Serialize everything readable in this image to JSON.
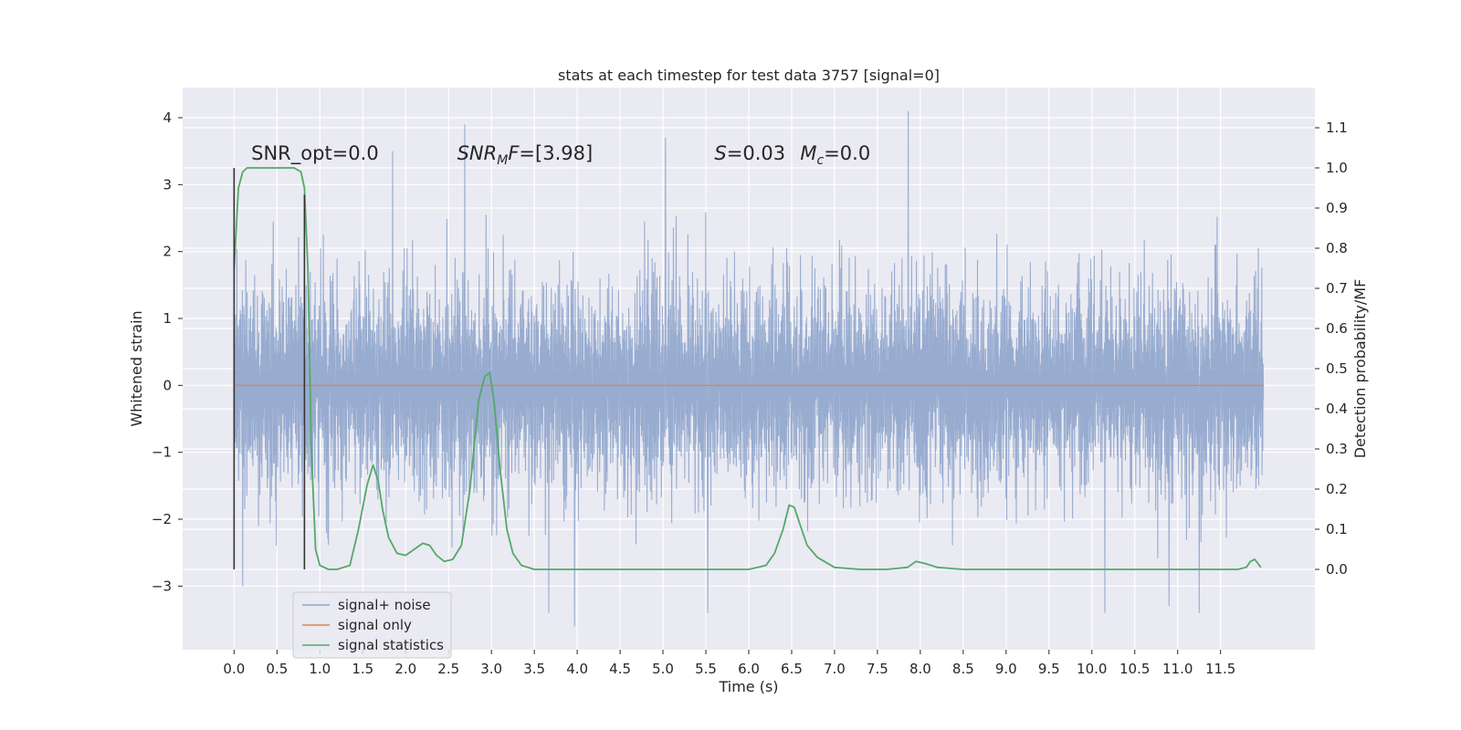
{
  "chart_data": {
    "type": "line",
    "title": "stats at each timestep for test data 3757 [signal=0]",
    "xlabel": "Time (s)",
    "ylabel": "Whitened strain",
    "y2label": "Detection probability/MF",
    "xlim": [
      -0.6,
      12.6
    ],
    "ylim": [
      -3.95,
      4.45
    ],
    "y2lim": [
      -0.2,
      1.2
    ],
    "x_ticks": [
      0.0,
      0.5,
      1.0,
      1.5,
      2.0,
      2.5,
      3.0,
      3.5,
      4.0,
      4.5,
      5.0,
      5.5,
      6.0,
      6.5,
      7.0,
      7.5,
      8.0,
      8.5,
      9.0,
      9.5,
      10.0,
      10.5,
      11.0,
      11.5
    ],
    "x_tick_labels": [
      "0.0",
      "0.5",
      "1.0",
      "1.5",
      "2.0",
      "2.5",
      "3.0",
      "3.5",
      "4.0",
      "4.5",
      "5.0",
      "5.5",
      "6.0",
      "6.5",
      "7.0",
      "7.5",
      "8.0",
      "8.5",
      "9.0",
      "9.5",
      "10.0",
      "10.5",
      "11.0",
      "11.5"
    ],
    "y_ticks": [
      -3,
      -2,
      -1,
      0,
      1,
      2,
      3,
      4
    ],
    "y_tick_labels": [
      "−3",
      "−2",
      "−1",
      "0",
      "1",
      "2",
      "3",
      "4"
    ],
    "y2_ticks": [
      0.0,
      0.1,
      0.2,
      0.3,
      0.4,
      0.5,
      0.6,
      0.7,
      0.8,
      0.9,
      1.0,
      1.1
    ],
    "y2_tick_labels": [
      "0.0",
      "0.1",
      "0.2",
      "0.3",
      "0.4",
      "0.5",
      "0.6",
      "0.7",
      "0.8",
      "0.9",
      "1.0",
      "1.1"
    ],
    "grid": true,
    "legend_position": "bottom-left",
    "colors": {
      "noise": "#8fa5cc",
      "signal": "#dd8452",
      "stats": "#55a868",
      "marker": "#333333",
      "background": "#eaeaf2",
      "grid": "#ffffff"
    },
    "annotations": [
      {
        "text": "SNR_opt=0.0",
        "x": 0.2,
        "y": 3.37
      },
      {
        "text": "SNR",
        "sub": "M",
        "tail": "F=[3.98]",
        "x": 2.6,
        "y": 3.37
      },
      {
        "text": "S",
        "tail": "=0.03",
        "x": 5.6,
        "y": 3.37
      },
      {
        "text": "M",
        "sub": "c",
        "tail": "=0.0",
        "x": 6.6,
        "y": 3.37
      }
    ],
    "markers": [
      {
        "x": 0.0,
        "y": [
          -2.75,
          3.25
        ]
      },
      {
        "x": 0.82,
        "y": [
          -2.75,
          2.85
        ]
      }
    ],
    "series": [
      {
        "name": "signal+ noise",
        "x_range": [
          0.0,
          12.0
        ],
        "sample_count": 3000,
        "envelope": {
          "core": [
            -1.55,
            1.45
          ],
          "typical": [
            -2.4,
            2.2
          ]
        },
        "notable_peaks": [
          {
            "x": 2.69,
            "y": 3.9
          },
          {
            "x": 7.86,
            "y": 4.1
          },
          {
            "x": 5.03,
            "y": 3.7
          },
          {
            "x": 1.85,
            "y": 3.5
          },
          {
            "x": 3.97,
            "y": -3.6
          },
          {
            "x": 0.1,
            "y": -3.0
          },
          {
            "x": 3.67,
            "y": -3.4
          },
          {
            "x": 5.52,
            "y": -3.4
          },
          {
            "x": 10.15,
            "y": -3.4
          },
          {
            "x": 10.9,
            "y": -3.3
          },
          {
            "x": 11.25,
            "y": -3.4
          }
        ]
      },
      {
        "name": "signal only",
        "x": [
          0.0,
          12.0
        ],
        "y": [
          0.0,
          0.0
        ]
      },
      {
        "name": "signal statistics",
        "axis": "right",
        "x": [
          0.0,
          0.05,
          0.1,
          0.15,
          0.2,
          0.3,
          0.4,
          0.5,
          0.6,
          0.7,
          0.78,
          0.82,
          0.86,
          0.9,
          0.95,
          1.0,
          1.1,
          1.2,
          1.35,
          1.45,
          1.55,
          1.62,
          1.68,
          1.73,
          1.8,
          1.9,
          2.0,
          2.1,
          2.2,
          2.28,
          2.36,
          2.45,
          2.55,
          2.65,
          2.75,
          2.85,
          2.92,
          2.98,
          3.03,
          3.1,
          3.18,
          3.25,
          3.35,
          3.5,
          3.7,
          4.0,
          4.5,
          5.0,
          5.5,
          6.0,
          6.2,
          6.3,
          6.4,
          6.47,
          6.53,
          6.6,
          6.68,
          6.8,
          7.0,
          7.3,
          7.6,
          7.85,
          7.95,
          8.05,
          8.2,
          8.5,
          9.0,
          10.0,
          11.0,
          11.7,
          11.8,
          11.85,
          11.9,
          11.97
        ],
        "y": [
          0.75,
          0.95,
          0.99,
          1.0,
          1.0,
          1.0,
          1.0,
          1.0,
          1.0,
          1.0,
          0.99,
          0.95,
          0.75,
          0.3,
          0.05,
          0.01,
          0.0,
          0.0,
          0.01,
          0.1,
          0.21,
          0.26,
          0.22,
          0.15,
          0.08,
          0.04,
          0.035,
          0.05,
          0.065,
          0.06,
          0.035,
          0.02,
          0.025,
          0.06,
          0.2,
          0.42,
          0.48,
          0.49,
          0.42,
          0.25,
          0.1,
          0.04,
          0.01,
          0.0,
          0.0,
          0.0,
          0.0,
          0.0,
          0.0,
          0.0,
          0.01,
          0.04,
          0.1,
          0.16,
          0.155,
          0.11,
          0.06,
          0.03,
          0.005,
          0.0,
          0.0,
          0.005,
          0.02,
          0.015,
          0.005,
          0.0,
          0.0,
          0.0,
          0.0,
          0.0,
          0.005,
          0.02,
          0.025,
          0.005
        ]
      }
    ]
  }
}
